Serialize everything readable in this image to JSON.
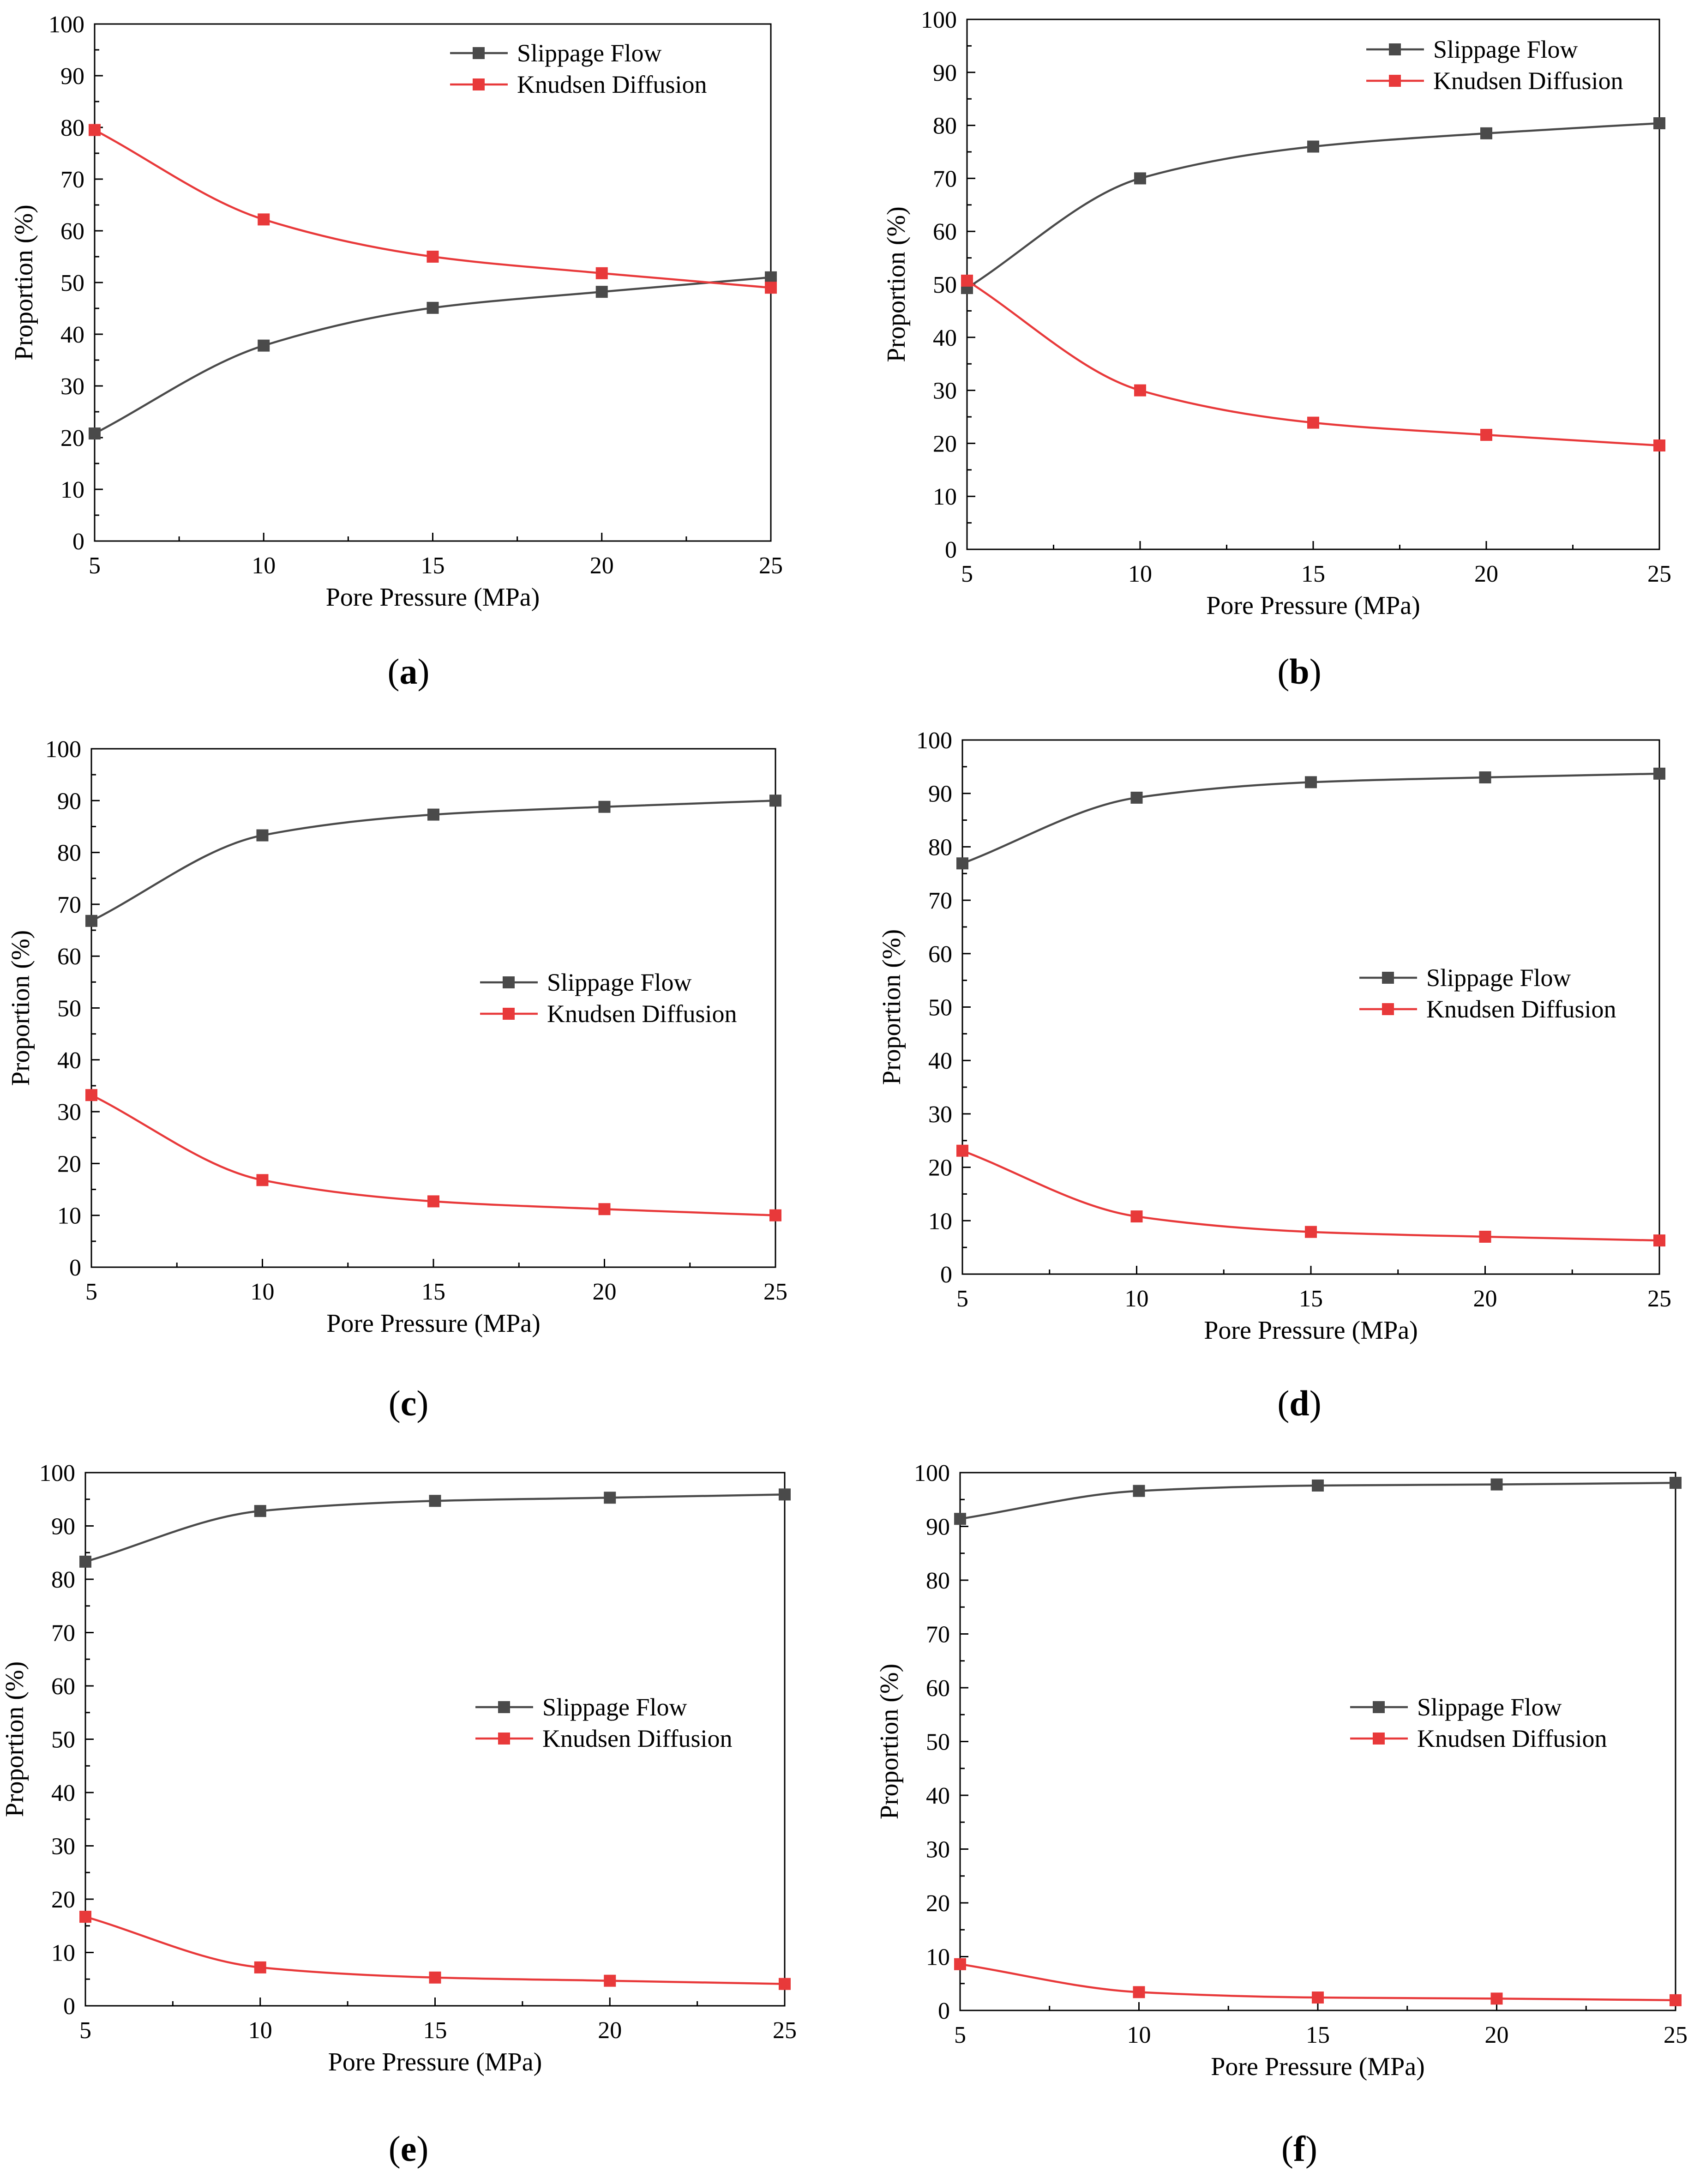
{
  "colors": {
    "slippage": "#4a4a4a",
    "knudsen": "#e8393a",
    "axis": "#000000"
  },
  "chart_data": [
    {
      "type": "line",
      "panel": "a",
      "xlabel": "Pore Pressure (MPa)",
      "ylabel": "Proportion (%)",
      "xlim": [
        5,
        25
      ],
      "ylim": [
        0,
        100
      ],
      "xticks": [
        "5",
        "10",
        "15",
        "20",
        "25"
      ],
      "yticks": [
        "0",
        "10",
        "20",
        "30",
        "40",
        "50",
        "60",
        "70",
        "80",
        "90",
        "100"
      ],
      "legend_position": "top-right",
      "x": [
        5,
        10,
        15,
        20,
        25
      ],
      "series": [
        {
          "name": "Slippage Flow",
          "values": [
            20.8,
            37.8,
            45.1,
            48.2,
            51.0
          ]
        },
        {
          "name": "Knudsen Diffusion",
          "values": [
            79.5,
            62.2,
            55.0,
            51.8,
            49.0
          ]
        }
      ]
    },
    {
      "type": "line",
      "panel": "b",
      "xlabel": "Pore Pressure (MPa)",
      "ylabel": "Proportion (%)",
      "xlim": [
        5,
        25
      ],
      "ylim": [
        0,
        100
      ],
      "xticks": [
        "5",
        "10",
        "15",
        "20",
        "25"
      ],
      "yticks": [
        "0",
        "10",
        "20",
        "30",
        "40",
        "50",
        "60",
        "70",
        "80",
        "90",
        "100"
      ],
      "legend_position": "top-right",
      "x": [
        5,
        10,
        15,
        20,
        25
      ],
      "series": [
        {
          "name": "Slippage Flow",
          "values": [
            49.3,
            70.0,
            76.0,
            78.5,
            80.4
          ]
        },
        {
          "name": "Knudsen Diffusion",
          "values": [
            50.7,
            30.0,
            23.9,
            21.6,
            19.6
          ]
        }
      ]
    },
    {
      "type": "line",
      "panel": "c",
      "xlabel": "Pore Pressure (MPa)",
      "ylabel": "Proportion (%)",
      "xlim": [
        5,
        25
      ],
      "ylim": [
        0,
        100
      ],
      "xticks": [
        "5",
        "10",
        "15",
        "20",
        "25"
      ],
      "yticks": [
        "0",
        "10",
        "20",
        "30",
        "40",
        "50",
        "60",
        "70",
        "80",
        "90",
        "100"
      ],
      "legend_position": "center-right",
      "x": [
        5,
        10,
        15,
        20,
        25
      ],
      "series": [
        {
          "name": "Slippage Flow",
          "values": [
            66.8,
            83.3,
            87.3,
            88.8,
            90.0
          ]
        },
        {
          "name": "Knudsen Diffusion",
          "values": [
            33.2,
            16.8,
            12.7,
            11.2,
            10.0
          ]
        }
      ]
    },
    {
      "type": "line",
      "panel": "d",
      "xlabel": "Pore Pressure (MPa)",
      "ylabel": "Proportion (%)",
      "xlim": [
        5,
        25
      ],
      "ylim": [
        0,
        100
      ],
      "xticks": [
        "5",
        "10",
        "15",
        "20",
        "25"
      ],
      "yticks": [
        "0",
        "10",
        "20",
        "30",
        "40",
        "50",
        "60",
        "70",
        "80",
        "90",
        "100"
      ],
      "legend_position": "center-right",
      "x": [
        5,
        10,
        15,
        20,
        25
      ],
      "series": [
        {
          "name": "Slippage Flow",
          "values": [
            76.9,
            89.2,
            92.1,
            93.0,
            93.7
          ]
        },
        {
          "name": "Knudsen Diffusion",
          "values": [
            23.1,
            10.8,
            7.9,
            7.0,
            6.3
          ]
        }
      ]
    },
    {
      "type": "line",
      "panel": "e",
      "xlabel": "Pore Pressure (MPa)",
      "ylabel": "Proportion (%)",
      "xlim": [
        5,
        25
      ],
      "ylim": [
        0,
        100
      ],
      "xticks": [
        "5",
        "10",
        "15",
        "20",
        "25"
      ],
      "yticks": [
        "0",
        "10",
        "20",
        "30",
        "40",
        "50",
        "60",
        "70",
        "80",
        "90",
        "100"
      ],
      "legend_position": "center-right",
      "x": [
        5,
        10,
        15,
        20,
        25
      ],
      "series": [
        {
          "name": "Slippage Flow",
          "values": [
            83.3,
            92.8,
            94.7,
            95.3,
            95.9
          ]
        },
        {
          "name": "Knudsen Diffusion",
          "values": [
            16.7,
            7.2,
            5.3,
            4.7,
            4.1
          ]
        }
      ]
    },
    {
      "type": "line",
      "panel": "f",
      "xlabel": "Pore Pressure (MPa)",
      "ylabel": "Proportion (%)",
      "xlim": [
        5,
        25
      ],
      "ylim": [
        0,
        100
      ],
      "xticks": [
        "5",
        "10",
        "15",
        "20",
        "25"
      ],
      "yticks": [
        "0",
        "10",
        "20",
        "30",
        "40",
        "50",
        "60",
        "70",
        "80",
        "90",
        "100"
      ],
      "legend_position": "center-right",
      "x": [
        5,
        10,
        15,
        20,
        25
      ],
      "series": [
        {
          "name": "Slippage Flow",
          "values": [
            91.4,
            96.6,
            97.6,
            97.8,
            98.1
          ]
        },
        {
          "name": "Knudsen Diffusion",
          "values": [
            8.6,
            3.4,
            2.4,
            2.2,
            1.9
          ]
        }
      ]
    }
  ],
  "captions": [
    {
      "open": "(",
      "letter": "a",
      "close": ")"
    },
    {
      "open": "(",
      "letter": "b",
      "close": ")"
    },
    {
      "open": "(",
      "letter": "c",
      "close": ")"
    },
    {
      "open": "(",
      "letter": "d",
      "close": ")"
    },
    {
      "open": "(",
      "letter": "e",
      "close": ")"
    },
    {
      "open": "(",
      "letter": "f",
      "close": ")"
    }
  ]
}
